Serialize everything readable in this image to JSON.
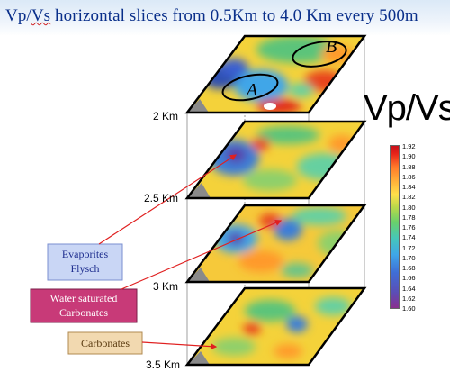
{
  "title": {
    "part1": "Vp/",
    "part2": "Vs",
    "part3": " horizontal slices from 0.5Km to  4.0 Km every 500m"
  },
  "depth_labels": [
    "2 Km",
    "2.5 Km",
    "3 Km",
    "3.5 Km"
  ],
  "zones": [
    "A",
    "B"
  ],
  "colorbar": {
    "title": "Vp/Vs",
    "ticks": [
      "1.92",
      "1.90",
      "1.88",
      "1.86",
      "1.84",
      "1.82",
      "1.80",
      "1.78",
      "1.76",
      "1.74",
      "1.72",
      "1.70",
      "1.68",
      "1.66",
      "1.64",
      "1.62",
      "1.60"
    ]
  },
  "callouts": {
    "evaporites": [
      "Evaporites",
      "Flysch"
    ],
    "water": [
      "Water saturated",
      "Carbonates"
    ],
    "carbonates": "Carbonates"
  },
  "colors": {
    "title": "#0a2f8a",
    "arrow": "#e02020",
    "evaporites_fill": "#c9d6f5",
    "water_fill": "#c83a78",
    "carbonates_fill": "#f2d9b0"
  }
}
